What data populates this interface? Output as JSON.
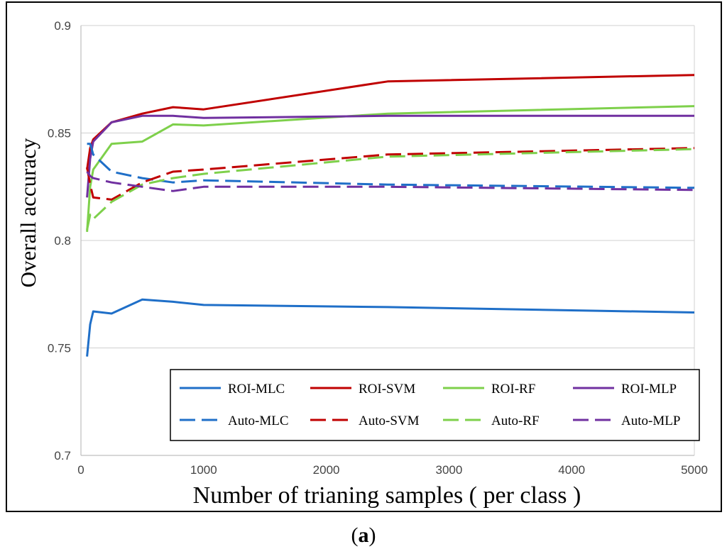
{
  "chart_data": {
    "type": "line",
    "title": "",
    "xlabel": "Number of trianing samples ( per class )",
    "ylabel": "Overall accuracy",
    "xlim": [
      0,
      5000
    ],
    "ylim": [
      0.7,
      0.9
    ],
    "xticks": [
      0,
      1000,
      2000,
      3000,
      4000,
      5000
    ],
    "yticks": [
      0.7,
      0.75,
      0.8,
      0.85,
      0.9
    ],
    "ytick_labels": [
      "0.7",
      "0.75",
      "0.8",
      "0.85",
      "0.9"
    ],
    "grid": "horizontal",
    "legend_position": "bottom",
    "series": [
      {
        "name": "ROI-MLC",
        "color": "#1f6fc8",
        "dash": "solid",
        "x": [
          50,
          75,
          100,
          250,
          500,
          750,
          1000,
          2500,
          5000
        ],
        "y": [
          0.746,
          0.761,
          0.767,
          0.766,
          0.7725,
          0.7715,
          0.77,
          0.769,
          0.7665
        ]
      },
      {
        "name": "ROI-SVM",
        "color": "#c00000",
        "dash": "solid",
        "x": [
          50,
          75,
          100,
          250,
          500,
          750,
          1000,
          2500,
          5000
        ],
        "y": [
          0.833,
          0.843,
          0.847,
          0.855,
          0.859,
          0.862,
          0.861,
          0.874,
          0.877
        ]
      },
      {
        "name": "ROI-RF",
        "color": "#7ed04b",
        "dash": "solid",
        "x": [
          50,
          75,
          100,
          250,
          500,
          750,
          1000,
          2500,
          5000
        ],
        "y": [
          0.804,
          0.825,
          0.833,
          0.845,
          0.846,
          0.854,
          0.8535,
          0.859,
          0.8625
        ]
      },
      {
        "name": "ROI-MLP",
        "color": "#7030a0",
        "dash": "solid",
        "x": [
          50,
          75,
          100,
          250,
          500,
          750,
          1000,
          2500,
          5000
        ],
        "y": [
          0.82,
          0.838,
          0.846,
          0.855,
          0.858,
          0.858,
          0.857,
          0.858,
          0.858
        ]
      },
      {
        "name": "Auto-MLC",
        "color": "#1f6fc8",
        "dash": "dashed",
        "x": [
          50,
          75,
          100,
          250,
          500,
          750,
          1000,
          2500,
          5000
        ],
        "y": [
          0.845,
          0.845,
          0.84,
          0.832,
          0.829,
          0.827,
          0.828,
          0.826,
          0.8245
        ]
      },
      {
        "name": "Auto-SVM",
        "color": "#c00000",
        "dash": "dashed",
        "x": [
          50,
          75,
          100,
          250,
          500,
          750,
          1000,
          2500,
          5000
        ],
        "y": [
          0.834,
          0.826,
          0.82,
          0.819,
          0.827,
          0.832,
          0.833,
          0.84,
          0.843
        ]
      },
      {
        "name": "Auto-RF",
        "color": "#7ed04b",
        "dash": "dashed",
        "x": [
          50,
          75,
          100,
          250,
          500,
          750,
          1000,
          2500,
          5000
        ],
        "y": [
          0.805,
          0.812,
          0.81,
          0.818,
          0.826,
          0.829,
          0.831,
          0.839,
          0.8425
        ]
      },
      {
        "name": "Auto-MLP",
        "color": "#7030a0",
        "dash": "dashed",
        "x": [
          50,
          75,
          100,
          250,
          500,
          750,
          1000,
          2500,
          5000
        ],
        "y": [
          0.832,
          0.83,
          0.829,
          0.827,
          0.825,
          0.823,
          0.825,
          0.825,
          0.8235
        ]
      }
    ]
  },
  "caption": {
    "open": "(",
    "label": "a",
    "close": ")"
  }
}
